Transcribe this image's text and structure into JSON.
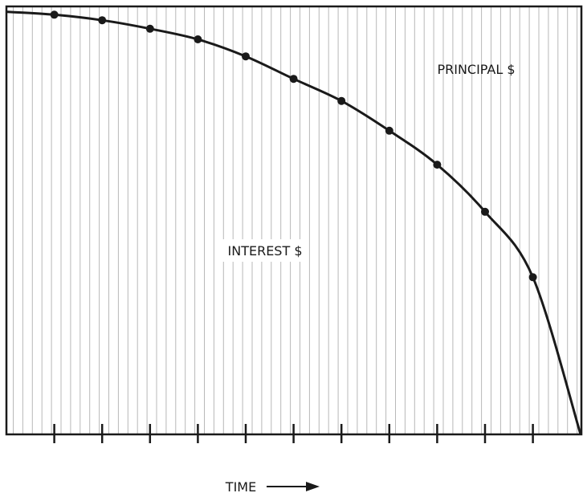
{
  "chart_data": {
    "type": "area",
    "title": "",
    "xlabel": "TIME",
    "ylabel": "",
    "regions": {
      "upper": "PRINCIPAL $",
      "lower": "INTEREST $"
    },
    "x": [
      0,
      1,
      2,
      3,
      4,
      5,
      6,
      7,
      8,
      9,
      10,
      11,
      12
    ],
    "series": [
      {
        "values": [
          0.995,
          0.988,
          0.975,
          0.955,
          0.93,
          0.89,
          0.837,
          0.785,
          0.715,
          0.635,
          0.524,
          0.37,
          0.0
        ]
      }
    ],
    "marked_x": [
      1,
      2,
      3,
      4,
      5,
      6,
      7,
      8,
      9,
      10,
      11
    ],
    "xlim": [
      0,
      12.1
    ],
    "ylim": [
      0,
      1
    ],
    "grid": "vertical",
    "colors": {
      "curve": "#1a1a1a",
      "grid": "#b8b8b8",
      "frame": "#1a1a1a"
    }
  }
}
